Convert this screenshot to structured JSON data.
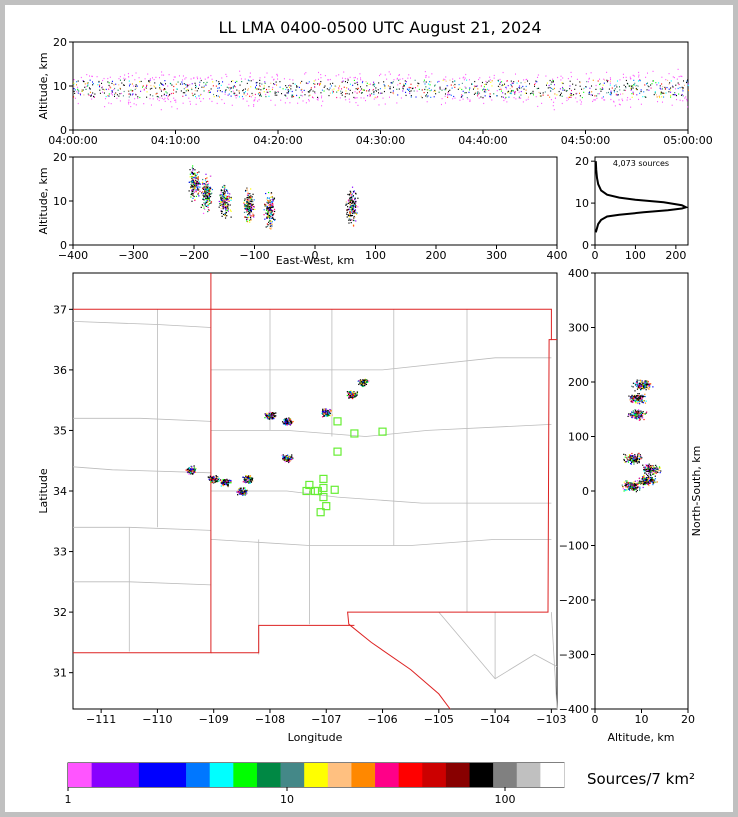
{
  "title": "LL LMA 0400-0500 UTC August 21, 2024",
  "chart_data": [
    {
      "id": "time_altitude",
      "type": "scatter",
      "ylabel": "Altitude, km",
      "xlim_minutes": [
        0,
        60
      ],
      "ylim": [
        0,
        20
      ],
      "xticks": [
        "04:00:00",
        "04:10:00",
        "04:20:00",
        "04:30:00",
        "04:40:00",
        "04:50:00",
        "05:00:00"
      ],
      "yticks": [
        0,
        10,
        20
      ],
      "density_centers": [
        {
          "x": 12,
          "y": 9.5
        },
        {
          "x": 20,
          "y": 9.5
        },
        {
          "x": 34,
          "y": 10
        },
        {
          "x": 41,
          "y": 10.5
        },
        {
          "x": 47,
          "y": 10
        },
        {
          "x": 57,
          "y": 9
        }
      ]
    },
    {
      "id": "ew_altitude",
      "type": "scatter",
      "xlabel": "East-West, km",
      "ylabel": "Altitude, km",
      "xlim": [
        -400,
        400
      ],
      "ylim": [
        0,
        20
      ],
      "xticks": [
        -400,
        -300,
        -200,
        -100,
        0,
        100,
        200,
        300,
        400
      ],
      "yticks": [
        0,
        10,
        20
      ],
      "clusters": [
        {
          "x": -200,
          "y": 14
        },
        {
          "x": -180,
          "y": 12
        },
        {
          "x": -150,
          "y": 10
        },
        {
          "x": -110,
          "y": 9
        },
        {
          "x": -75,
          "y": 8
        },
        {
          "x": 60,
          "y": 9
        }
      ]
    },
    {
      "id": "altitude_histogram",
      "type": "line",
      "annotation": "4,073 sources",
      "xlim": [
        0,
        230
      ],
      "ylim": [
        0,
        21
      ],
      "xticks": [
        0,
        100,
        200
      ],
      "yticks": [
        0,
        10,
        20
      ],
      "x": [
        2,
        8,
        15,
        30,
        60,
        120,
        180,
        215,
        225,
        215,
        170,
        100,
        60,
        30,
        15,
        8,
        5,
        3,
        2
      ],
      "y": [
        3,
        5,
        6,
        6.8,
        7.2,
        7.8,
        8.3,
        8.7,
        9,
        9.5,
        10.2,
        10.8,
        11.3,
        12,
        13,
        14.5,
        16,
        18,
        20
      ]
    },
    {
      "id": "map",
      "type": "scatter",
      "xlabel": "Longitude",
      "ylabel": "Latitude",
      "xlim": [
        -111.5,
        -102.9
      ],
      "ylim": [
        30.4,
        37.6
      ],
      "xticks": [
        -111,
        -110,
        -109,
        -108,
        -107,
        -106,
        -105,
        -104,
        -103
      ],
      "yticks": [
        31,
        32,
        33,
        34,
        35,
        36,
        37
      ],
      "stations": [
        [
          -106.8,
          35.15
        ],
        [
          -106.5,
          34.95
        ],
        [
          -106.0,
          34.98
        ],
        [
          -106.8,
          34.65
        ],
        [
          -107.35,
          34.0
        ],
        [
          -107.2,
          34.0
        ],
        [
          -107.05,
          34.2
        ],
        [
          -107.05,
          34.05
        ],
        [
          -107.05,
          33.9
        ],
        [
          -107.0,
          33.75
        ],
        [
          -107.1,
          33.65
        ],
        [
          -107.3,
          34.1
        ],
        [
          -107.15,
          34.0
        ],
        [
          -106.85,
          34.02
        ]
      ],
      "clusters": [
        [
          -109.4,
          34.35
        ],
        [
          -109.0,
          34.2
        ],
        [
          -108.8,
          34.15
        ],
        [
          -108.4,
          34.2
        ],
        [
          -108.5,
          34.0
        ],
        [
          -107.7,
          34.55
        ],
        [
          -108.0,
          35.25
        ],
        [
          -107.7,
          35.15
        ],
        [
          -107.0,
          35.3
        ],
        [
          -106.55,
          35.6
        ],
        [
          -106.35,
          35.8
        ]
      ]
    },
    {
      "id": "altitude_ns",
      "type": "scatter",
      "xlabel": "Altitude, km",
      "ylabel": "North-South, km",
      "xlim": [
        0,
        20
      ],
      "ylim": [
        -400,
        400
      ],
      "xticks": [
        0,
        10,
        20
      ],
      "yticks": [
        -400,
        -300,
        -200,
        -100,
        0,
        100,
        200,
        300,
        400
      ],
      "clusters": [
        {
          "x": 10,
          "y": 195
        },
        {
          "x": 9,
          "y": 170
        },
        {
          "x": 9,
          "y": 140
        },
        {
          "x": 8,
          "y": 60
        },
        {
          "x": 12,
          "y": 40
        },
        {
          "x": 11,
          "y": 20
        },
        {
          "x": 8,
          "y": 10
        }
      ]
    }
  ],
  "colorbar": {
    "label": "Sources/7 km²",
    "ticks": [
      "1",
      "10",
      "100"
    ],
    "colors": [
      "#ff55ff",
      "#8800ff",
      "#8800ff",
      "#0000ff",
      "#0000ff",
      "#0077ff",
      "#00ffff",
      "#00ff00",
      "#008844",
      "#448888",
      "#ffff00",
      "#ffc080",
      "#ff8800",
      "#ff0088",
      "#ff0000",
      "#cc0000",
      "#880000",
      "#000000",
      "#808080",
      "#c0c0c0",
      "#ffffff"
    ]
  }
}
